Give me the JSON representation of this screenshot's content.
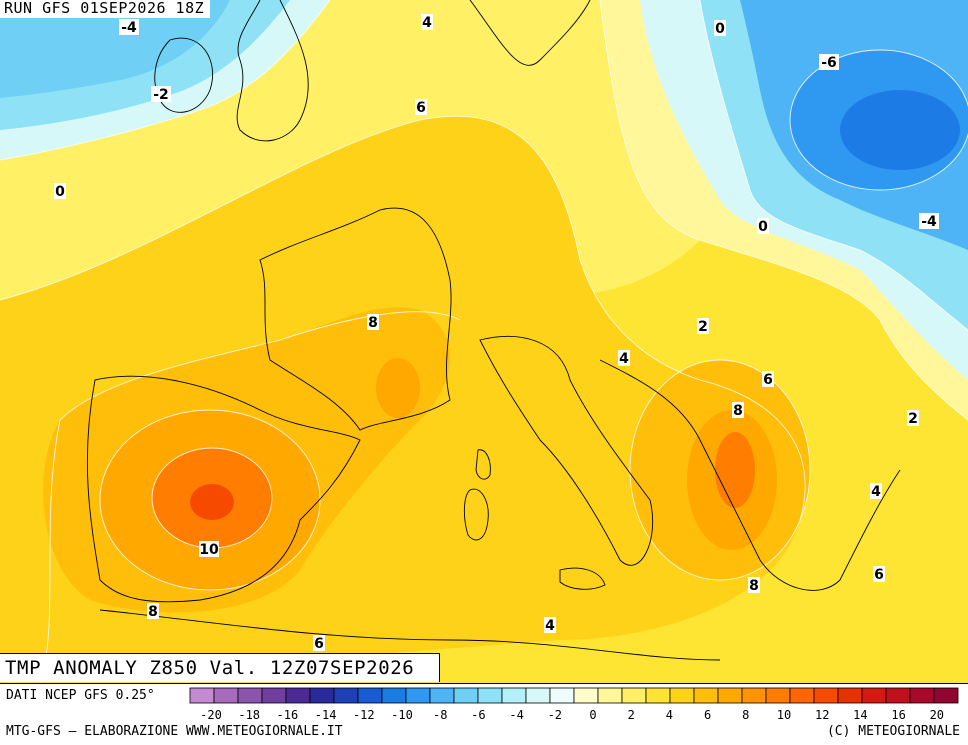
{
  "map": {
    "run_label": "RUN GFS 01SEP2026 18Z",
    "title": "TMP ANOMALY Z850 Val. 12Z07SEP2026",
    "contour_labels": [
      {
        "value": "-4"
      },
      {
        "value": "4"
      },
      {
        "value": "0"
      },
      {
        "value": "-6"
      },
      {
        "value": "-2"
      },
      {
        "value": "6"
      },
      {
        "value": "0"
      },
      {
        "value": "0"
      },
      {
        "value": "-4"
      },
      {
        "value": "8"
      },
      {
        "value": "2"
      },
      {
        "value": "4"
      },
      {
        "value": "6"
      },
      {
        "value": "8"
      },
      {
        "value": "2"
      },
      {
        "value": "4"
      },
      {
        "value": "10"
      },
      {
        "value": "8"
      },
      {
        "value": "6"
      },
      {
        "value": "8"
      },
      {
        "value": "4"
      },
      {
        "value": "6"
      }
    ]
  },
  "colorbar": {
    "tick_labels": [
      "-20",
      "-18",
      "-16",
      "-14",
      "-12",
      "-10",
      "-8",
      "-6",
      "-4",
      "-2",
      "0",
      "2",
      "4",
      "6",
      "8",
      "10",
      "12",
      "14",
      "16",
      "20"
    ],
    "colors": [
      "#c58bd2",
      "#a66bbe",
      "#8b55ad",
      "#6e3f9e",
      "#4b2b93",
      "#2a2a9a",
      "#1f3fb8",
      "#1a5ad2",
      "#1d7be6",
      "#2f98f0",
      "#4fb4f5",
      "#6fcff5",
      "#8fe2f5",
      "#b4f0f7",
      "#d7f8f8",
      "#eefcfb",
      "#fffccc",
      "#fff79a",
      "#fff066",
      "#ffe533",
      "#ffd21a",
      "#ffbe0a",
      "#ffa800",
      "#ff9300",
      "#ff7d00",
      "#ff6500",
      "#f54a00",
      "#e63200",
      "#d41a10",
      "#c0101e",
      "#a8082a",
      "#900630"
    ]
  },
  "footer": {
    "source": "DATI NCEP GFS 0.25°",
    "credit": "MTG-GFS – ELABORAZIONE WWW.METEOGIORNALE.IT",
    "copyright": "(C) METEOGIORNALE"
  }
}
